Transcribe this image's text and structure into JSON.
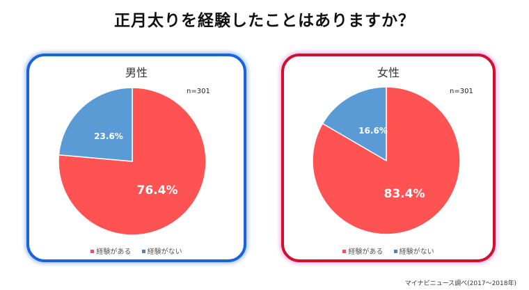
{
  "title": "正月太りを経験したことはありますか？",
  "source": "マイナビニュース調べ(2017～2018年)",
  "colors": {
    "yes": "#ff5252",
    "no": "#5b9bd5",
    "male_border": "#1a63d8",
    "female_border": "#d0112e"
  },
  "legend": {
    "yes": "経験がある",
    "no": "経験がない"
  },
  "panels": {
    "male": {
      "title": "男性",
      "n": "n=301",
      "yes_label": "76.4%",
      "no_label": "23.6%"
    },
    "female": {
      "title": "女性",
      "n": "n=301",
      "yes_label": "83.4%",
      "no_label": "16.6%"
    }
  },
  "chart_data": [
    {
      "type": "pie",
      "title": "男性",
      "annotation": "n=301",
      "categories": [
        "経験がある",
        "経験がない"
      ],
      "values": [
        76.4,
        23.6
      ],
      "colors": [
        "#ff5252",
        "#5b9bd5"
      ],
      "unit": "%",
      "legend_position": "bottom",
      "start_angle": "12 o'clock, clockwise"
    },
    {
      "type": "pie",
      "title": "女性",
      "annotation": "n=301",
      "categories": [
        "経験がある",
        "経験がない"
      ],
      "values": [
        83.4,
        16.6
      ],
      "colors": [
        "#ff5252",
        "#5b9bd5"
      ],
      "unit": "%",
      "legend_position": "bottom",
      "start_angle": "12 o'clock, clockwise"
    }
  ]
}
